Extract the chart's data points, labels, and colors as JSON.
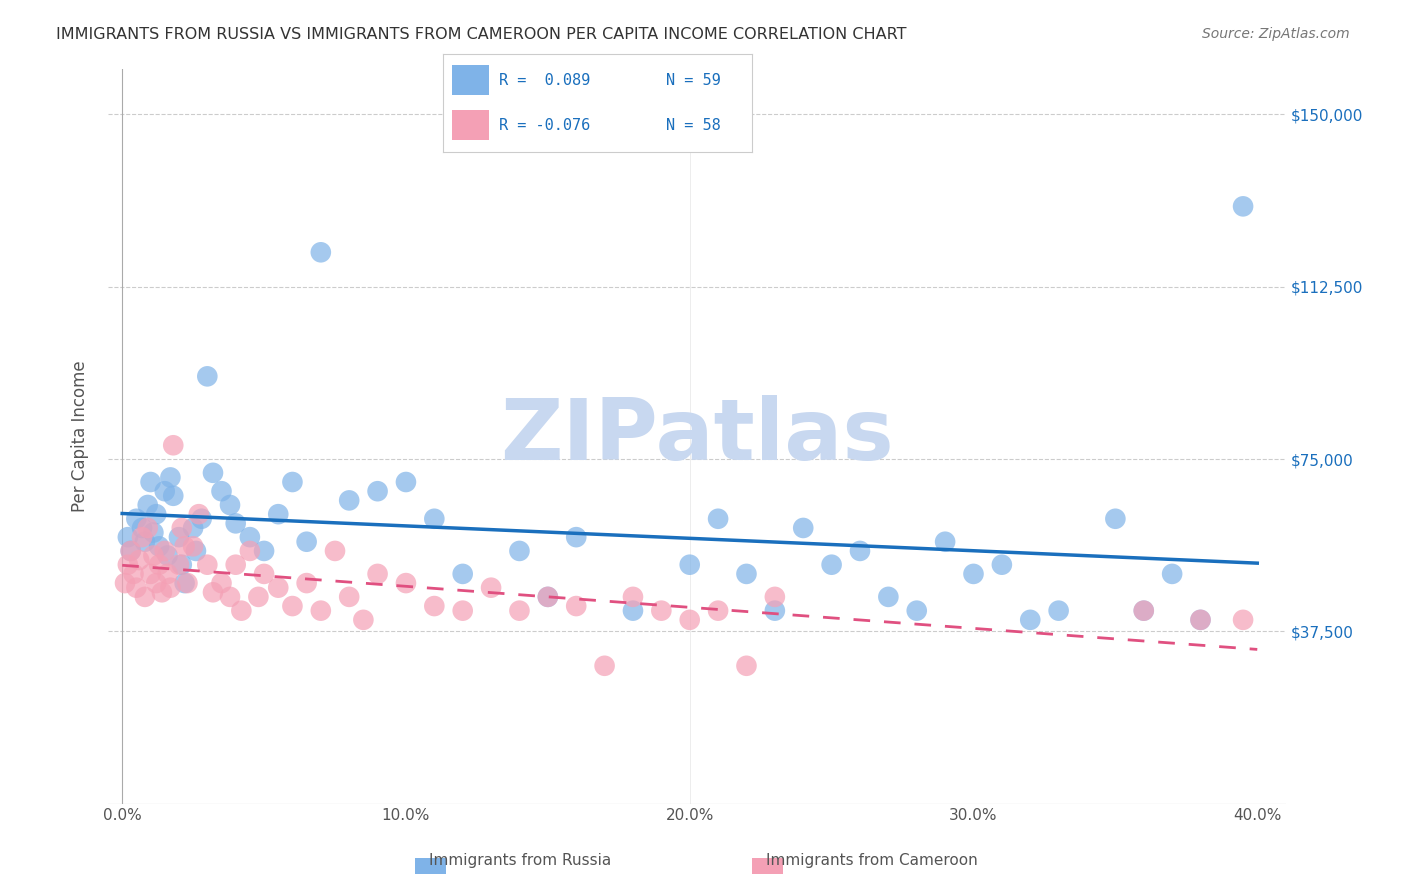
{
  "title": "IMMIGRANTS FROM RUSSIA VS IMMIGRANTS FROM CAMEROON PER CAPITA INCOME CORRELATION CHART",
  "source": "Source: ZipAtlas.com",
  "xlabel_ticks": [
    "0.0%",
    "10.0%",
    "20.0%",
    "30.0%",
    "40.0%"
  ],
  "xlabel_tick_vals": [
    0.0,
    0.1,
    0.2,
    0.3,
    0.4
  ],
  "ylabel": "Per Capita Income",
  "ylim": [
    0,
    160000
  ],
  "xlim": [
    -0.005,
    0.41
  ],
  "ytick_vals": [
    0,
    37500,
    75000,
    112500,
    150000
  ],
  "ytick_labels": [
    "",
    "$37,500",
    "$75,000",
    "$112,500",
    "$150,000"
  ],
  "russia_color": "#7fb3e8",
  "cameroon_color": "#f4a0b5",
  "russia_line_color": "#1a6fbd",
  "cameroon_line_color": "#e05080",
  "cameroon_line_dashed": true,
  "legend_R_russia": "R =  0.089",
  "legend_N_russia": "N = 59",
  "legend_R_cameroon": "R = -0.076",
  "legend_N_cameroon": "N = 58",
  "watermark": "ZIPatlas",
  "watermark_color": "#c8d8f0",
  "background_color": "#ffffff",
  "title_color": "#333333",
  "right_ytick_color": "#1a6fbd",
  "russia_x": [
    0.002,
    0.003,
    0.005,
    0.007,
    0.008,
    0.009,
    0.01,
    0.011,
    0.012,
    0.013,
    0.015,
    0.016,
    0.017,
    0.018,
    0.02,
    0.021,
    0.022,
    0.025,
    0.026,
    0.028,
    0.03,
    0.032,
    0.035,
    0.038,
    0.04,
    0.045,
    0.05,
    0.055,
    0.06,
    0.065,
    0.07,
    0.08,
    0.09,
    0.1,
    0.11,
    0.12,
    0.14,
    0.15,
    0.16,
    0.18,
    0.2,
    0.21,
    0.22,
    0.23,
    0.24,
    0.25,
    0.26,
    0.27,
    0.28,
    0.29,
    0.3,
    0.31,
    0.32,
    0.33,
    0.35,
    0.36,
    0.37,
    0.38,
    0.395
  ],
  "russia_y": [
    58000,
    55000,
    62000,
    60000,
    57000,
    65000,
    70000,
    59000,
    63000,
    56000,
    68000,
    54000,
    71000,
    67000,
    58000,
    52000,
    48000,
    60000,
    55000,
    62000,
    93000,
    72000,
    68000,
    65000,
    61000,
    58000,
    55000,
    63000,
    70000,
    57000,
    120000,
    66000,
    68000,
    70000,
    62000,
    50000,
    55000,
    45000,
    58000,
    42000,
    52000,
    62000,
    50000,
    42000,
    60000,
    52000,
    55000,
    45000,
    42000,
    57000,
    50000,
    52000,
    40000,
    42000,
    62000,
    42000,
    50000,
    40000,
    130000
  ],
  "cameroon_x": [
    0.001,
    0.002,
    0.003,
    0.004,
    0.005,
    0.006,
    0.007,
    0.008,
    0.009,
    0.01,
    0.011,
    0.012,
    0.013,
    0.014,
    0.015,
    0.016,
    0.017,
    0.018,
    0.02,
    0.021,
    0.022,
    0.023,
    0.025,
    0.027,
    0.03,
    0.032,
    0.035,
    0.038,
    0.04,
    0.042,
    0.045,
    0.048,
    0.05,
    0.055,
    0.06,
    0.065,
    0.07,
    0.075,
    0.08,
    0.085,
    0.09,
    0.1,
    0.11,
    0.12,
    0.13,
    0.14,
    0.15,
    0.16,
    0.17,
    0.18,
    0.19,
    0.2,
    0.21,
    0.22,
    0.23,
    0.36,
    0.38,
    0.395
  ],
  "cameroon_y": [
    48000,
    52000,
    55000,
    50000,
    47000,
    53000,
    58000,
    45000,
    60000,
    50000,
    54000,
    48000,
    52000,
    46000,
    55000,
    50000,
    47000,
    78000,
    52000,
    60000,
    56000,
    48000,
    56000,
    63000,
    52000,
    46000,
    48000,
    45000,
    52000,
    42000,
    55000,
    45000,
    50000,
    47000,
    43000,
    48000,
    42000,
    55000,
    45000,
    40000,
    50000,
    48000,
    43000,
    42000,
    47000,
    42000,
    45000,
    43000,
    30000,
    45000,
    42000,
    40000,
    42000,
    30000,
    45000,
    42000,
    40000,
    40000
  ]
}
